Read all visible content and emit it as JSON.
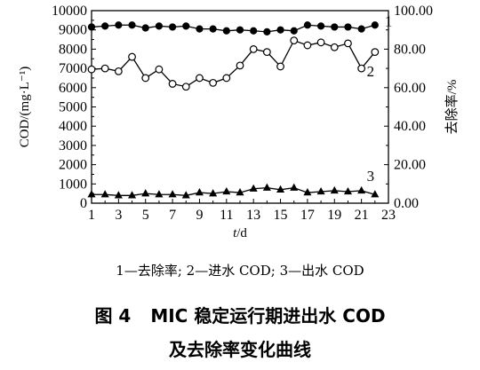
{
  "chart_data": {
    "type": "line",
    "xlabel": "t/d",
    "ylabel_left": "COD/(mg·L⁻¹)",
    "ylabel_right": "去除率/%",
    "xlim": [
      1,
      23
    ],
    "x_ticks": [
      "1",
      "3",
      "5",
      "7",
      "9",
      "11",
      "13",
      "15",
      "17",
      "19",
      "21",
      "23"
    ],
    "ylim_left": [
      0,
      10000
    ],
    "y_ticks_left": [
      "0",
      "1000",
      "2000",
      "3000",
      "4000",
      "5000",
      "6000",
      "7000",
      "8000",
      "9000",
      "10000"
    ],
    "ylim_right": [
      0,
      100
    ],
    "y_ticks_right": [
      "0.00",
      "20.00",
      "40.00",
      "60.00",
      "80.00",
      "100.00"
    ],
    "series": [
      {
        "label": "1",
        "axis": "right",
        "marker": "filled-circle",
        "x": [
          1,
          2,
          3,
          4,
          5,
          6,
          7,
          8,
          9,
          10,
          11,
          12,
          13,
          14,
          15,
          16,
          17,
          18,
          19,
          20,
          21,
          22
        ],
        "values": [
          91.5,
          92,
          92.5,
          92.5,
          91,
          92,
          91.5,
          92,
          90.5,
          90.5,
          89.5,
          90,
          89.5,
          89,
          90,
          89.5,
          92.5,
          92,
          91.5,
          91.5,
          90.5,
          92.5
        ]
      },
      {
        "label": "2",
        "axis": "left",
        "marker": "open-circle",
        "x": [
          1,
          2,
          3,
          4,
          5,
          6,
          7,
          8,
          9,
          10,
          11,
          12,
          13,
          14,
          15,
          16,
          17,
          18,
          19,
          20,
          21,
          22
        ],
        "values": [
          6950,
          7000,
          6850,
          7600,
          6500,
          6950,
          6200,
          6050,
          6500,
          6250,
          6500,
          7150,
          8000,
          7850,
          7100,
          8450,
          8200,
          8350,
          8100,
          8300,
          7000,
          7850
        ]
      },
      {
        "label": "3",
        "axis": "left",
        "marker": "filled-triangle",
        "x": [
          1,
          2,
          3,
          4,
          5,
          6,
          7,
          8,
          9,
          10,
          11,
          12,
          13,
          14,
          15,
          16,
          17,
          18,
          19,
          20,
          21,
          22
        ],
        "values": [
          450,
          450,
          400,
          400,
          500,
          450,
          450,
          400,
          550,
          500,
          600,
          550,
          750,
          800,
          700,
          800,
          550,
          600,
          650,
          600,
          650,
          450
        ]
      }
    ]
  },
  "legend": "1—去除率; 2—进水 COD; 3—出水 COD",
  "caption": {
    "number": "图 4",
    "line1": "MIC 稳定运行期进出水 COD",
    "line2": "及去除率变化曲线"
  }
}
